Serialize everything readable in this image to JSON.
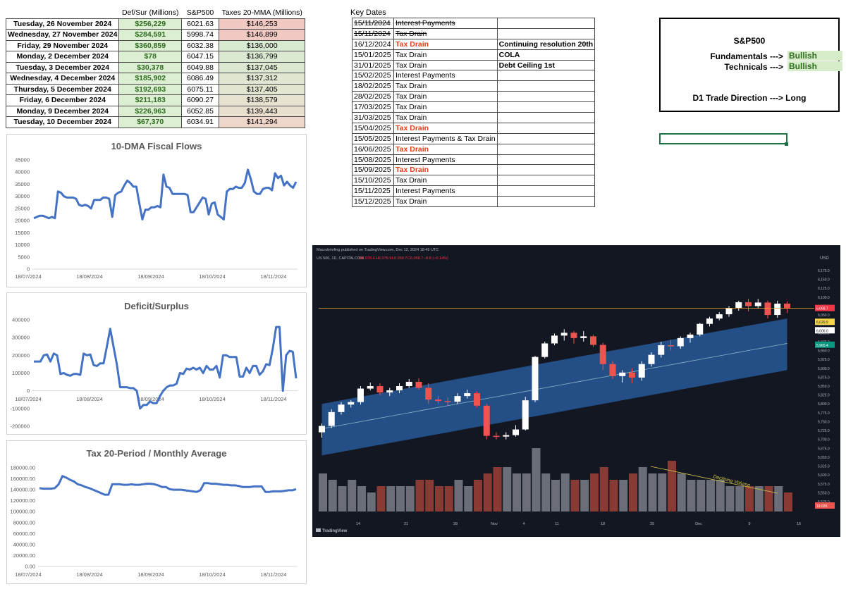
{
  "main_table": {
    "headers": [
      "Def/Sur (Millions)",
      "S&P500",
      "Taxes 20-MMA (Millions)"
    ],
    "rows": [
      {
        "date": "Tuesday, 26 November 2024",
        "defsur": "$256,229",
        "sp": "6021.63",
        "tax": "$146,253"
      },
      {
        "date": "Wednesday, 27 November 2024",
        "defsur": "$284,591",
        "sp": "5998.74",
        "tax": "$146,899"
      },
      {
        "date": "Friday, 29 November 2024",
        "defsur": "$360,859",
        "sp": "6032.38",
        "tax": "$136,000"
      },
      {
        "date": "Monday, 2 December 2024",
        "defsur": "$78",
        "sp": "6047.15",
        "tax": "$136,799"
      },
      {
        "date": "Tuesday, 3 December 2024",
        "defsur": "$30,378",
        "sp": "6049.88",
        "tax": "$137,045"
      },
      {
        "date": "Wednesday, 4 December 2024",
        "defsur": "$185,902",
        "sp": "6086.49",
        "tax": "$137,312"
      },
      {
        "date": "Thursday, 5 December 2024",
        "defsur": "$192,693",
        "sp": "6075.11",
        "tax": "$137,405"
      },
      {
        "date": "Friday, 6 December 2024",
        "defsur": "$211,183",
        "sp": "6090.27",
        "tax": "$138,579"
      },
      {
        "date": "Monday, 9 December 2024",
        "defsur": "$226,963",
        "sp": "6052.85",
        "tax": "$139,443"
      },
      {
        "date": "Tuesday, 10 December 2024",
        "defsur": "$67,370",
        "sp": "6034.91",
        "tax": "$141,294"
      }
    ],
    "tax_colors": [
      "#f1c9c3",
      "#f1c9c3",
      "#d9ead3",
      "#dbe9d2",
      "#dde8d2",
      "#e0e6d1",
      "#e2e5d0",
      "#e6e2cf",
      "#e9dfce",
      "#efd6cb"
    ]
  },
  "key_dates": {
    "title": "Key Dates",
    "rows": [
      {
        "date": "15/11/2024",
        "event": "Interest Payments",
        "note": "",
        "strike": true,
        "red": false
      },
      {
        "date": "15/11/2024",
        "event": "Tax Drain",
        "note": "",
        "strike": true,
        "red": false
      },
      {
        "date": "16/12/2024",
        "event": "Tax Drain",
        "note": "Continuing resolution 20th",
        "strike": false,
        "red": true
      },
      {
        "date": "15/01/2025",
        "event": "Tax Drain",
        "note": "COLA",
        "strike": false,
        "red": false
      },
      {
        "date": "31/01/2025",
        "event": "Tax Drain",
        "note": "Debt Ceiling 1st",
        "strike": false,
        "red": false
      },
      {
        "date": "15/02/2025",
        "event": "Interest Payments",
        "note": "",
        "strike": false,
        "red": false
      },
      {
        "date": "18/02/2025",
        "event": "Tax Drain",
        "note": "",
        "strike": false,
        "red": false
      },
      {
        "date": "28/02/2025",
        "event": "Tax Drain",
        "note": "",
        "strike": false,
        "red": false
      },
      {
        "date": "17/03/2025",
        "event": "Tax Drain",
        "note": "",
        "strike": false,
        "red": false
      },
      {
        "date": "31/03/2025",
        "event": "Tax Drain",
        "note": "",
        "strike": false,
        "red": false
      },
      {
        "date": "15/04/2025",
        "event": "Tax Drain",
        "note": "",
        "strike": false,
        "red": true
      },
      {
        "date": "15/05/2025",
        "event": "Interest Payments & Tax Drain",
        "note": "",
        "strike": false,
        "red": false
      },
      {
        "date": "16/06/2025",
        "event": "Tax Drain",
        "note": "",
        "strike": false,
        "red": true
      },
      {
        "date": "15/08/2025",
        "event": "Interest Payments",
        "note": "",
        "strike": false,
        "red": false
      },
      {
        "date": "15/09/2025",
        "event": "Tax Drain",
        "note": "",
        "strike": false,
        "red": true
      },
      {
        "date": "15/10/2025",
        "event": "Tax Drain",
        "note": "",
        "strike": false,
        "red": false
      },
      {
        "date": "15/11/2025",
        "event": "Interest Payments",
        "note": "",
        "strike": false,
        "red": false
      },
      {
        "date": "15/12/2025",
        "event": "Tax Drain",
        "note": "",
        "strike": false,
        "red": false
      }
    ]
  },
  "sp_box": {
    "title": "S&P500",
    "fundamentals_label": "Fundamentals --->",
    "fundamentals_value": "Bullish",
    "technicals_label": "Technicals --->",
    "technicals_value": "Bullish",
    "direction": "D1 Trade Direction ---> Long"
  },
  "chart_data": [
    {
      "type": "line",
      "title": "10-DMA Fiscal Flows",
      "ylim": [
        0,
        45000
      ],
      "yticks": [
        "45000",
        "40000",
        "35000",
        "30000",
        "25000",
        "20000",
        "15000",
        "10000",
        "5000",
        "0"
      ],
      "xticks": [
        "18/07/2024",
        "18/08/2024",
        "18/09/2024",
        "18/10/2024",
        "18/11/2024"
      ],
      "color": "#4472c4",
      "values": [
        21000,
        21500,
        22000,
        22000,
        21500,
        21000,
        21500,
        21000,
        32000,
        31500,
        30000,
        29500,
        29500,
        29500,
        29000,
        26500,
        26000,
        26500,
        26000,
        25000,
        28500,
        28500,
        28500,
        29500,
        29500,
        29000,
        21500,
        30500,
        31500,
        32000,
        34500,
        36500,
        35500,
        34000,
        34000,
        27000,
        20500,
        24500,
        24500,
        25500,
        25500,
        26000,
        25500,
        39000,
        34000,
        33500,
        31000,
        31000,
        31000,
        31000,
        31000,
        30500,
        23500,
        23500,
        25500,
        27500,
        29500,
        29000,
        22500,
        27000,
        27500,
        22500,
        21500,
        20500,
        32000,
        33000,
        33000,
        34000,
        33500,
        33500,
        35500,
        41000,
        37000,
        32000,
        31000,
        31000,
        33000,
        33500,
        33500,
        32500,
        39500,
        37500,
        38500,
        34500,
        36000,
        34500,
        33500,
        36000
      ]
    },
    {
      "type": "line",
      "title": "Deficit/Surplus",
      "ylim": [
        -200000,
        400000
      ],
      "yticks": [
        "400000",
        "300000",
        "200000",
        "100000",
        "0",
        "-100000",
        "-200000"
      ],
      "xticks": [
        "18/07/2024",
        "18/08/2024",
        "18/09/2024",
        "18/10/2024",
        "18/11/2024"
      ],
      "color": "#4472c4",
      "values": [
        165000,
        165000,
        165000,
        200000,
        205000,
        165000,
        210000,
        200000,
        95000,
        100000,
        90000,
        85000,
        95000,
        95000,
        90000,
        210000,
        200000,
        205000,
        145000,
        140000,
        155000,
        155000,
        250000,
        350000,
        250000,
        150000,
        20000,
        20000,
        20000,
        15000,
        15000,
        0,
        -100000,
        -80000,
        -80000,
        -60000,
        -70000,
        -70000,
        -30000,
        0,
        20000,
        30000,
        30000,
        40000,
        100000,
        95000,
        125000,
        120000,
        130000,
        120000,
        130000,
        100000,
        140000,
        120000,
        120000,
        140000,
        75000,
        200000,
        200000,
        190000,
        190000,
        190000,
        80000,
        80000,
        130000,
        100000,
        140000,
        140000,
        90000,
        110000,
        150000,
        145000,
        240000,
        360000,
        360000,
        0,
        200000,
        225000,
        220000,
        70000
      ]
    },
    {
      "type": "line",
      "title": "Tax 20-Period / Monthly Average",
      "ylim": [
        0,
        180000
      ],
      "yticks": [
        "180000.00",
        "160000.00",
        "140000.00",
        "120000.00",
        "100000.00",
        "80000.00",
        "60000.00",
        "40000.00",
        "20000.00",
        "0.00"
      ],
      "xticks": [
        "18/07/2024",
        "18/08/2024",
        "18/09/2024",
        "18/10/2024",
        "18/11/2024"
      ],
      "color": "#4472c4",
      "values": [
        143000,
        142000,
        142000,
        142000,
        143000,
        150000,
        165000,
        162000,
        158000,
        155000,
        150000,
        148000,
        145000,
        143000,
        140000,
        137000,
        134000,
        131000,
        131000,
        150000,
        150000,
        150000,
        149000,
        149000,
        150000,
        149000,
        149000,
        150000,
        151000,
        151000,
        150000,
        148000,
        145000,
        145000,
        141000,
        140000,
        140000,
        140000,
        139000,
        138000,
        137000,
        136000,
        139000,
        152000,
        152000,
        151000,
        151000,
        150000,
        149000,
        149000,
        148000,
        148000,
        147000,
        145000,
        145000,
        145000,
        146000,
        146000,
        146000,
        136000,
        136000,
        137000,
        137000,
        137000,
        138000,
        139000,
        139000,
        141000
      ]
    }
  ],
  "tradingview": {
    "header": "Macrobriefing published on TradingView.com, Dec 12, 2024 18:49 UTC",
    "symbol": "US 500, 1D, CAPITALCOM",
    "ohlc_o": "O6,078.4",
    "ohlc_h": "H6,079.9",
    "ohlc_l": "L6,059.7",
    "ohlc_c": "C6,068.7",
    "ohlc_chg": "−8.8 (−0.14%)",
    "currency": "USD",
    "annotation": "Declining Volume",
    "logo_text": "TradingView",
    "price_axis": [
      "6,175.0",
      "6,150.0",
      "6,125.0",
      "6,100.0",
      "6,075.0",
      "6,050.0",
      "6,025.0",
      "6,000.0",
      "5,975.0",
      "5,950.0",
      "5,925.0",
      "5,900.0",
      "5,875.0",
      "5,850.0",
      "5,825.0",
      "5,800.0",
      "5,775.0",
      "5,750.0",
      "5,725.0",
      "5,700.0",
      "5,675.0",
      "5,650.0",
      "5,625.0",
      "5,600.0",
      "5,575.0",
      "5,550.0",
      "5,525.0"
    ],
    "time_axis": [
      "14",
      "21",
      "28",
      "Nov",
      "4",
      "11",
      "18",
      "25",
      "Dec",
      "9",
      "16"
    ],
    "price_tags": [
      "6,068.7",
      "6,029.9",
      "6,006.0",
      "5,965.4",
      "19.02K"
    ]
  }
}
